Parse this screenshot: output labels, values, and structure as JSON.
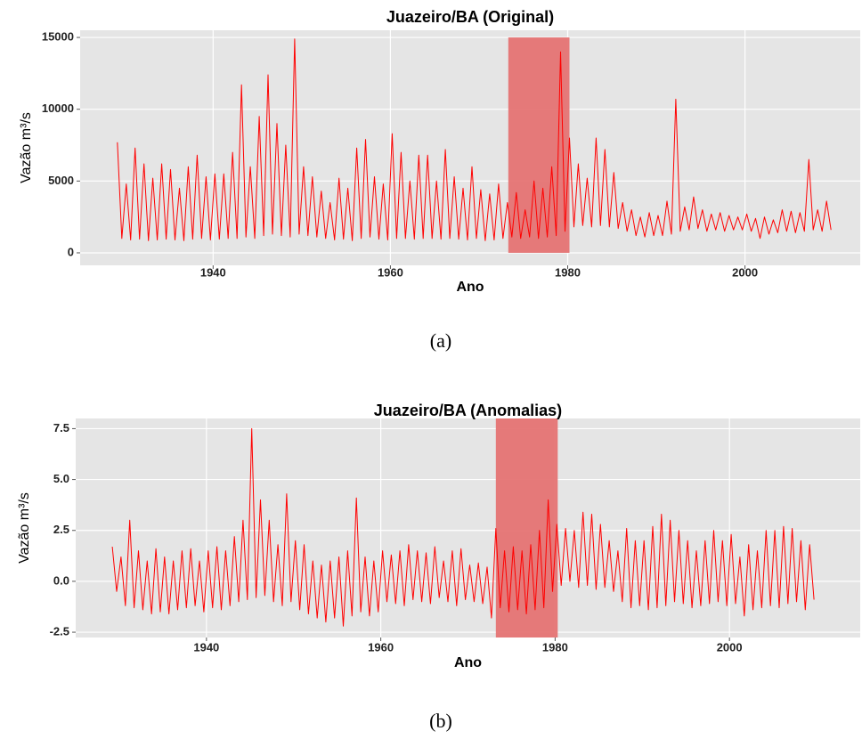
{
  "chart_data": [
    {
      "type": "line",
      "title": "Juazeiro/BA (Original)",
      "x_label": "Ano",
      "y_label": "Vazão m³/s",
      "caption": "(a)",
      "color": "#ff0000",
      "grid": true,
      "xlim": [
        1925,
        2013
      ],
      "ylim": [
        -870,
        15500
      ],
      "xticks": [
        1940,
        1960,
        1980,
        2000
      ],
      "yticks": [
        0,
        5000,
        10000,
        15000
      ],
      "highlight": {
        "x": [
          1973.3,
          1980.2
        ],
        "y": [
          0,
          15000
        ],
        "color": "#e57373"
      },
      "x": [
        1929.2,
        1929.7,
        1930.2,
        1930.7,
        1931.2,
        1931.7,
        1932.2,
        1932.7,
        1933.2,
        1933.7,
        1934.2,
        1934.7,
        1935.2,
        1935.7,
        1936.2,
        1936.7,
        1937.2,
        1937.7,
        1938.2,
        1938.7,
        1939.2,
        1939.7,
        1940.2,
        1940.7,
        1941.2,
        1941.7,
        1942.2,
        1942.7,
        1943.2,
        1943.7,
        1944.2,
        1944.7,
        1945.2,
        1945.7,
        1946.2,
        1946.7,
        1947.2,
        1947.7,
        1948.2,
        1948.7,
        1949.2,
        1949.7,
        1950.2,
        1950.7,
        1951.2,
        1951.7,
        1952.2,
        1952.7,
        1953.2,
        1953.7,
        1954.2,
        1954.7,
        1955.2,
        1955.7,
        1956.2,
        1956.7,
        1957.2,
        1957.7,
        1958.2,
        1958.7,
        1959.2,
        1959.7,
        1960.2,
        1960.7,
        1961.2,
        1961.7,
        1962.2,
        1962.7,
        1963.2,
        1963.7,
        1964.2,
        1964.7,
        1965.2,
        1965.7,
        1966.2,
        1966.7,
        1967.2,
        1967.7,
        1968.2,
        1968.7,
        1969.2,
        1969.7,
        1970.2,
        1970.7,
        1971.2,
        1971.7,
        1972.2,
        1972.7,
        1973.2,
        1973.7,
        1974.2,
        1974.7,
        1975.2,
        1975.7,
        1976.2,
        1976.7,
        1977.2,
        1977.7,
        1978.2,
        1978.7,
        1979.2,
        1979.7,
        1980.2,
        1980.7,
        1981.2,
        1981.7,
        1982.2,
        1982.7,
        1983.2,
        1983.7,
        1984.2,
        1984.7,
        1985.2,
        1985.7,
        1986.2,
        1986.7,
        1987.2,
        1987.7,
        1988.2,
        1988.7,
        1989.2,
        1989.7,
        1990.2,
        1990.7,
        1991.2,
        1991.7,
        1992.2,
        1992.7,
        1993.2,
        1993.7,
        1994.2,
        1994.7,
        1995.2,
        1995.7,
        1996.2,
        1996.7,
        1997.2,
        1997.7,
        1998.2,
        1998.7,
        1999.2,
        1999.7,
        2000.2,
        2000.7,
        2001.2,
        2001.7,
        2002.2,
        2002.7,
        2003.2,
        2003.7,
        2004.2,
        2004.7,
        2005.2,
        2005.7,
        2006.2,
        2006.7,
        2007.2,
        2007.7,
        2008.2,
        2008.7,
        2009.2,
        2009.7
      ],
      "values": [
        7700,
        1000,
        4800,
        900,
        7300,
        950,
        6200,
        850,
        5200,
        900,
        6200,
        950,
        5800,
        900,
        4500,
        850,
        6000,
        950,
        6800,
        1000,
        5300,
        900,
        5500,
        950,
        5500,
        1000,
        7000,
        1000,
        11700,
        1100,
        6000,
        1000,
        9500,
        1200,
        12400,
        1300,
        9000,
        1200,
        7500,
        1100,
        14900,
        1300,
        6000,
        1200,
        5300,
        1100,
        4300,
        1000,
        3500,
        900,
        5200,
        950,
        4500,
        850,
        7300,
        1000,
        7900,
        1100,
        5300,
        950,
        4800,
        900,
        8300,
        1000,
        7000,
        1000,
        5000,
        950,
        6800,
        1000,
        6800,
        1000,
        5000,
        950,
        7200,
        1000,
        5300,
        950,
        4500,
        900,
        6000,
        1000,
        4400,
        850,
        4100,
        900,
        4800,
        1000,
        3500,
        1100,
        4200,
        1000,
        3000,
        1100,
        5000,
        1000,
        4500,
        1100,
        6000,
        1200,
        14000,
        1500,
        8000,
        1800,
        6200,
        1900,
        5200,
        1800,
        8000,
        1900,
        7200,
        1800,
        5600,
        1700,
        3500,
        1500,
        3000,
        1200,
        2500,
        1100,
        2800,
        1200,
        2600,
        1200,
        3600,
        1300,
        10700,
        1500,
        3200,
        1600,
        3900,
        1700,
        3000,
        1500,
        2700,
        1600,
        2800,
        1500,
        2600,
        1600,
        2500,
        1600,
        2700,
        1500,
        2400,
        1000,
        2500,
        1300,
        2300,
        1400,
        3000,
        1500,
        2900,
        1400,
        2800,
        1500,
        6500,
        1600,
        3000,
        1500,
        3600,
        1600
      ]
    },
    {
      "type": "line",
      "title": "Juazeiro/BA (Anomalias)",
      "x_label": "Ano",
      "y_label": "Vazão m³/s",
      "caption": "(b)",
      "color": "#ff0000",
      "grid": true,
      "xlim": [
        1925,
        2015
      ],
      "ylim": [
        -2.76,
        8.0
      ],
      "xticks": [
        1940,
        1960,
        1980,
        2000
      ],
      "yticks": [
        {
          "value": -2.5,
          "label": "-2.5"
        },
        {
          "value": 0,
          "label": "0.0"
        },
        {
          "value": 2.5,
          "label": "2.5"
        },
        {
          "value": 5,
          "label": "5.0"
        },
        {
          "value": 7.5,
          "label": "7.5"
        }
      ],
      "highlight": {
        "x": [
          1973.2,
          1980.3
        ],
        "y": [
          -2.76,
          8.0
        ],
        "color": "#e57373"
      },
      "x": [
        1929.2,
        1929.7,
        1930.2,
        1930.7,
        1931.2,
        1931.7,
        1932.2,
        1932.7,
        1933.2,
        1933.7,
        1934.2,
        1934.7,
        1935.2,
        1935.7,
        1936.2,
        1936.7,
        1937.2,
        1937.7,
        1938.2,
        1938.7,
        1939.2,
        1939.7,
        1940.2,
        1940.7,
        1941.2,
        1941.7,
        1942.2,
        1942.7,
        1943.2,
        1943.7,
        1944.2,
        1944.7,
        1945.2,
        1945.7,
        1946.2,
        1946.7,
        1947.2,
        1947.7,
        1948.2,
        1948.7,
        1949.2,
        1949.7,
        1950.2,
        1950.7,
        1951.2,
        1951.7,
        1952.2,
        1952.7,
        1953.2,
        1953.7,
        1954.2,
        1954.7,
        1955.2,
        1955.7,
        1956.2,
        1956.7,
        1957.2,
        1957.7,
        1958.2,
        1958.7,
        1959.2,
        1959.7,
        1960.2,
        1960.7,
        1961.2,
        1961.7,
        1962.2,
        1962.7,
        1963.2,
        1963.7,
        1964.2,
        1964.7,
        1965.2,
        1965.7,
        1966.2,
        1966.7,
        1967.2,
        1967.7,
        1968.2,
        1968.7,
        1969.2,
        1969.7,
        1970.2,
        1970.7,
        1971.2,
        1971.7,
        1972.2,
        1972.7,
        1973.2,
        1973.7,
        1974.2,
        1974.7,
        1975.2,
        1975.7,
        1976.2,
        1976.7,
        1977.2,
        1977.7,
        1978.2,
        1978.7,
        1979.2,
        1979.7,
        1980.2,
        1980.7,
        1981.2,
        1981.7,
        1982.2,
        1982.7,
        1983.2,
        1983.7,
        1984.2,
        1984.7,
        1985.2,
        1985.7,
        1986.2,
        1986.7,
        1987.2,
        1987.7,
        1988.2,
        1988.7,
        1989.2,
        1989.7,
        1990.2,
        1990.7,
        1991.2,
        1991.7,
        1992.2,
        1992.7,
        1993.2,
        1993.7,
        1994.2,
        1994.7,
        1995.2,
        1995.7,
        1996.2,
        1996.7,
        1997.2,
        1997.7,
        1998.2,
        1998.7,
        1999.2,
        1999.7,
        2000.2,
        2000.7,
        2001.2,
        2001.7,
        2002.2,
        2002.7,
        2003.2,
        2003.7,
        2004.2,
        2004.7,
        2005.2,
        2005.7,
        2006.2,
        2006.7,
        2007.2,
        2007.7,
        2008.2,
        2008.7,
        2009.2,
        2009.7
      ],
      "values": [
        1.7,
        -0.5,
        1.2,
        -1.2,
        3.0,
        -1.3,
        1.5,
        -1.4,
        1.0,
        -1.6,
        1.6,
        -1.5,
        1.2,
        -1.6,
        1.0,
        -1.4,
        1.5,
        -1.3,
        1.6,
        -1.2,
        1.0,
        -1.5,
        1.5,
        -1.3,
        1.7,
        -1.4,
        1.5,
        -1.2,
        2.2,
        -1.0,
        3.0,
        -0.9,
        7.5,
        -0.8,
        4.0,
        -0.7,
        3.0,
        -1.0,
        1.8,
        -1.2,
        4.3,
        -1.0,
        2.0,
        -1.4,
        1.8,
        -1.6,
        1.0,
        -1.8,
        0.8,
        -2.0,
        1.0,
        -1.8,
        1.2,
        -2.2,
        1.5,
        -1.7,
        4.1,
        -1.5,
        1.2,
        -1.7,
        1.0,
        -1.5,
        1.5,
        -1.0,
        1.3,
        -1.1,
        1.5,
        -1.2,
        1.8,
        -0.9,
        1.5,
        -1.0,
        1.4,
        -1.1,
        1.7,
        -0.8,
        1.0,
        -1.0,
        1.5,
        -1.2,
        1.6,
        -0.9,
        0.8,
        -1.0,
        0.9,
        -1.1,
        0.7,
        -1.8,
        2.6,
        -1.3,
        1.5,
        -1.5,
        1.7,
        -1.4,
        1.5,
        -1.6,
        1.8,
        -1.4,
        2.5,
        -1.3,
        4.0,
        -0.5,
        2.8,
        -0.2,
        2.6,
        0.0,
        2.5,
        -0.3,
        3.4,
        -0.2,
        3.3,
        -0.4,
        2.8,
        -0.3,
        2.0,
        -0.5,
        1.5,
        -1.0,
        2.6,
        -1.3,
        2.0,
        -1.2,
        2.0,
        -1.4,
        2.7,
        -1.3,
        3.3,
        -1.2,
        3.0,
        -1.0,
        2.5,
        -1.1,
        2.0,
        -1.3,
        1.5,
        -1.2,
        2.0,
        -1.1,
        2.5,
        -1.0,
        2.0,
        -1.2,
        2.3,
        -1.1,
        1.2,
        -1.7,
        1.8,
        -1.4,
        1.5,
        -1.3,
        2.5,
        -1.2,
        2.5,
        -1.3,
        2.7,
        -1.1,
        2.6,
        -1.0,
        2.0,
        -1.4,
        1.8,
        -0.9
      ]
    }
  ]
}
